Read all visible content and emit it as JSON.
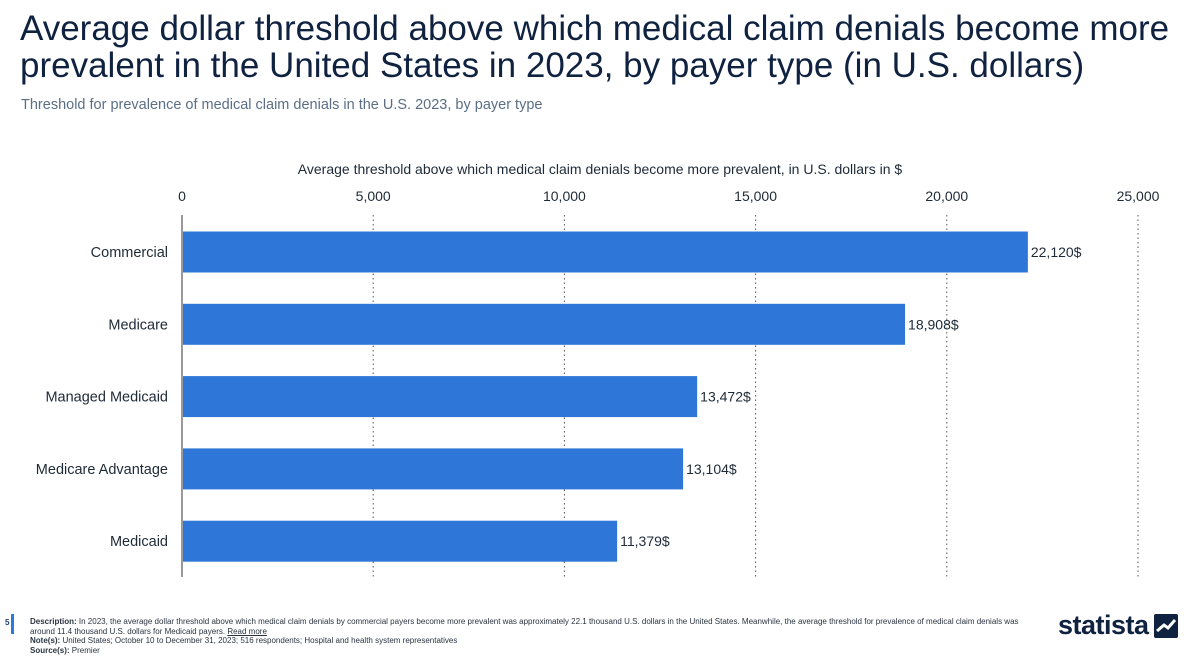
{
  "header": {
    "title": "Average dollar threshold above which medical claim denials become more prevalent in the United States in 2023, by payer type (in U.S. dollars)",
    "subtitle": "Threshold for prevalence of medical claim denials in the U.S. 2023, by payer type"
  },
  "chart_data": {
    "type": "bar",
    "orientation": "horizontal",
    "xlabel": "Average threshold above which medical claim denials become more prevalent, in U.S. dollars in $",
    "categories": [
      "Commercial",
      "Medicare",
      "Managed Medicaid",
      "Medicare Advantage",
      "Medicaid"
    ],
    "values": [
      22120,
      18908,
      13472,
      13104,
      11379
    ],
    "value_labels": [
      "22,120$",
      "18,908$",
      "13,472$",
      "13,104$",
      "11,379$"
    ],
    "ticks": [
      0,
      5000,
      10000,
      15000,
      20000,
      25000
    ],
    "tick_labels": [
      "0",
      "5,000",
      "10,000",
      "15,000",
      "20,000",
      "25,000"
    ],
    "xlim": [
      0,
      25000
    ],
    "grid": true,
    "axis_position": "top",
    "bar_color": "#2e77d9"
  },
  "footer": {
    "page_number": "5",
    "description_label": "Description:",
    "description_text": "In 2023, the average dollar threshold above which medical claim denials by commercial payers become more prevalent was approximately 22.1 thousand U.S. dollars in the United States. Meanwhile, the average threshold for prevalence of medical claim denials was around 11.4 thousand U.S. dollars for Medicaid payers.",
    "read_more": "Read more",
    "notes_label": "Note(s):",
    "notes_text": "United States;  October 10 to December 31, 2023; 516 respondents; Hospital and health system representatives",
    "source_label": "Source(s):",
    "source_text": "Premier",
    "logo_text": "statista",
    "logo_icon": "statista-logo-icon"
  }
}
